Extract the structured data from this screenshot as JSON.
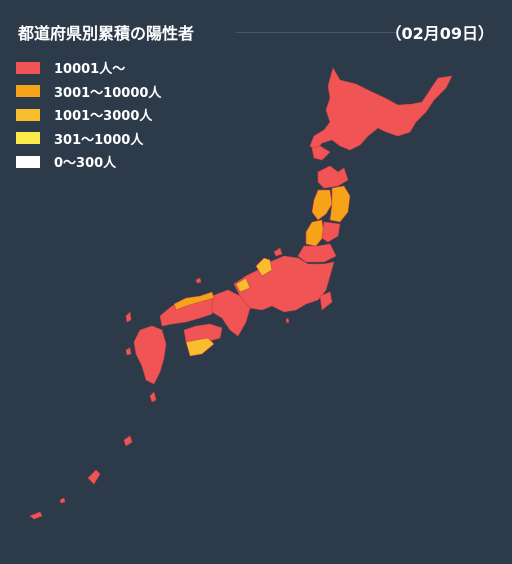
{
  "header": {
    "title": "都道府県別累積の陽性者",
    "date": "（02月09日）"
  },
  "legend": [
    {
      "label": "10001人〜",
      "color": "#f05454"
    },
    {
      "label": "3001〜10000人",
      "color": "#f7a31a"
    },
    {
      "label": "1001〜3000人",
      "color": "#f8be2e"
    },
    {
      "label": "301〜1000人",
      "color": "#fbe94a"
    },
    {
      "label": "0〜300人",
      "color": "#ffffff"
    }
  ],
  "map": {
    "background": "#2d3a4a",
    "border_color": "#c94444"
  }
}
